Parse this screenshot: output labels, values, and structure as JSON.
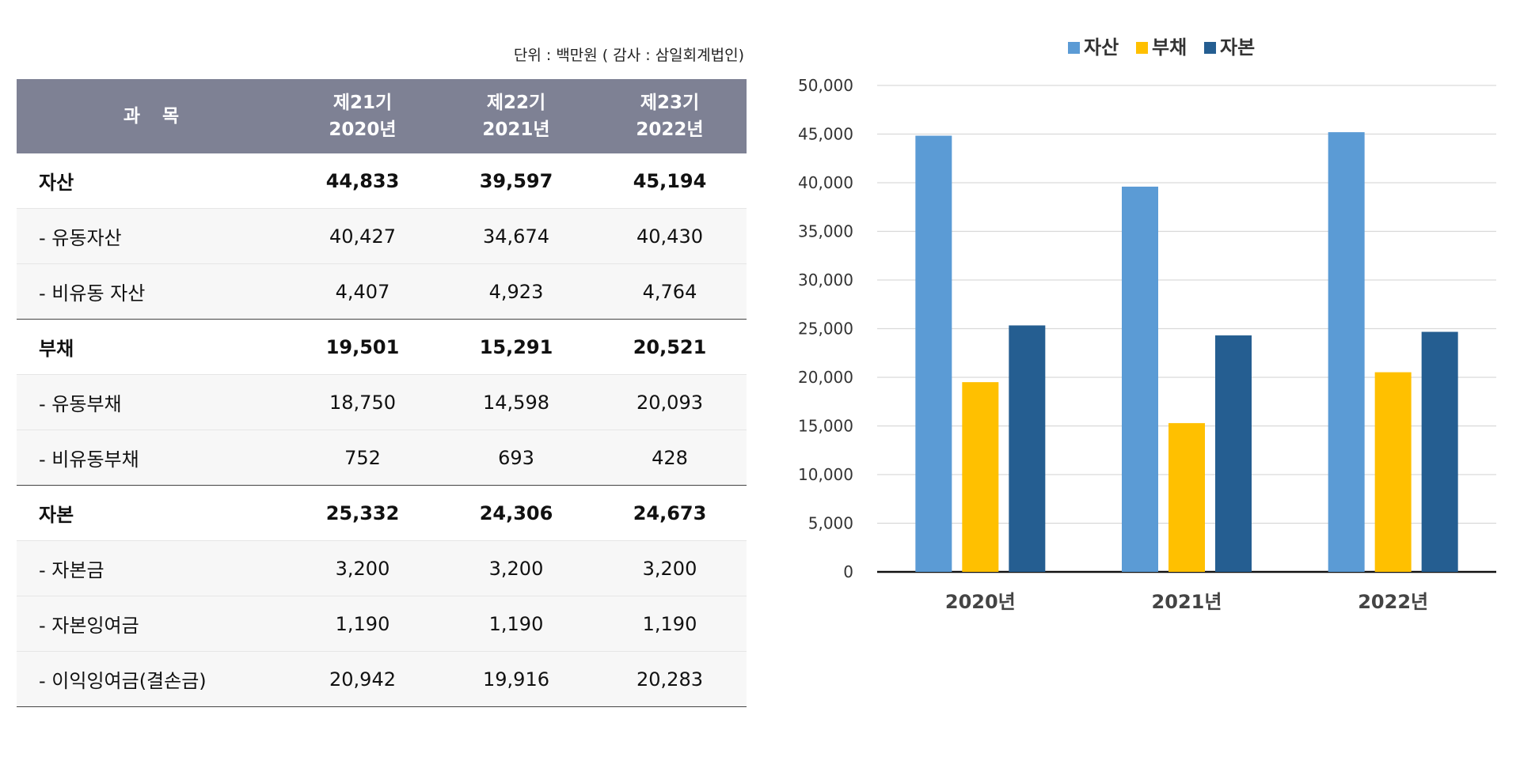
{
  "unit_note": "단위 : 백만원 ( 감사 : 삼일회계법인)",
  "table": {
    "headers": [
      {
        "line1": "과 목",
        "line2": ""
      },
      {
        "line1": "제21기",
        "line2": "2020년"
      },
      {
        "line1": "제22기",
        "line2": "2021년"
      },
      {
        "line1": "제23기",
        "line2": "2022년"
      }
    ],
    "rows": [
      {
        "label": "자산",
        "values": [
          "44,833",
          "39,597",
          "45,194"
        ],
        "kind": "main",
        "group_end": false
      },
      {
        "label": "- 유동자산",
        "values": [
          "40,427",
          "34,674",
          "40,430"
        ],
        "kind": "sub",
        "group_end": false
      },
      {
        "label": "- 비유동 자산",
        "values": [
          "4,407",
          "4,923",
          "4,764"
        ],
        "kind": "sub",
        "group_end": true
      },
      {
        "label": "부채",
        "values": [
          "19,501",
          "15,291",
          "20,521"
        ],
        "kind": "main",
        "group_end": false
      },
      {
        "label": "- 유동부채",
        "values": [
          "18,750",
          "14,598",
          "20,093"
        ],
        "kind": "sub",
        "group_end": false
      },
      {
        "label": "- 비유동부채",
        "values": [
          "752",
          "693",
          "428"
        ],
        "kind": "sub",
        "group_end": true
      },
      {
        "label": "자본",
        "values": [
          "25,332",
          "24,306",
          "24,673"
        ],
        "kind": "main",
        "group_end": false
      },
      {
        "label": "- 자본금",
        "values": [
          "3,200",
          "3,200",
          "3,200"
        ],
        "kind": "sub",
        "group_end": false
      },
      {
        "label": "- 자본잉여금",
        "values": [
          "1,190",
          "1,190",
          "1,190"
        ],
        "kind": "sub",
        "group_end": false
      },
      {
        "label": "- 이익잉여금(결손금)",
        "values": [
          "20,942",
          "19,916",
          "20,283"
        ],
        "kind": "sub",
        "group_end": true
      }
    ]
  },
  "chart_data": {
    "type": "bar",
    "categories": [
      "2020년",
      "2021년",
      "2022년"
    ],
    "series": [
      {
        "name": "자산",
        "values": [
          44833,
          39597,
          45194
        ],
        "color": "#5b9bd5"
      },
      {
        "name": "부채",
        "values": [
          19501,
          15291,
          20521
        ],
        "color": "#ffc000"
      },
      {
        "name": "자본",
        "values": [
          25332,
          24306,
          24673
        ],
        "color": "#255e91"
      }
    ],
    "ylim": [
      0,
      50000
    ],
    "yticks": [
      0,
      5000,
      10000,
      15000,
      20000,
      25000,
      30000,
      35000,
      40000,
      45000,
      50000
    ],
    "ytick_labels": [
      "0",
      "5,000",
      "10,000",
      "15,000",
      "20,000",
      "25,000",
      "30,000",
      "35,000",
      "40,000",
      "45,000",
      "50,000"
    ],
    "grid": true,
    "legend": "top-center",
    "title": "",
    "xlabel": "",
    "ylabel": ""
  }
}
